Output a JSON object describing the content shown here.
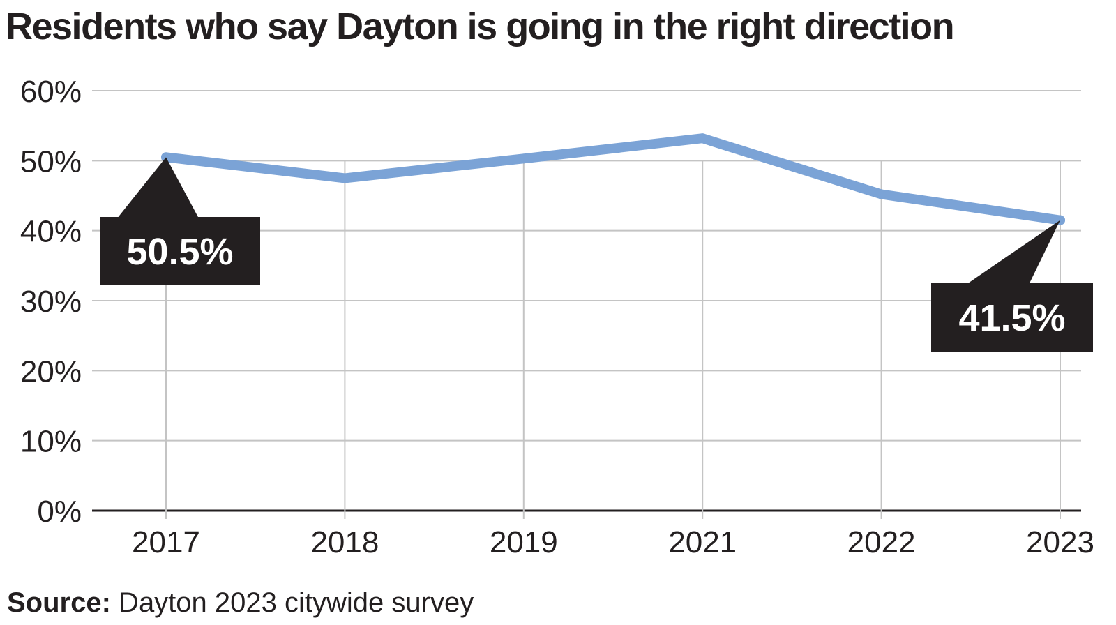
{
  "chart_data": {
    "type": "line",
    "title": "Residents who say Dayton is going in the right direction",
    "xlabel": "",
    "ylabel": "",
    "categories": [
      "2017",
      "2018",
      "2019",
      "2021",
      "2022",
      "2023"
    ],
    "series": [
      {
        "values": [
          50.5,
          47.5,
          50.3,
          53.2,
          45.2,
          41.5
        ],
        "color": "#7ba3d6"
      }
    ],
    "ylim": [
      0,
      60
    ],
    "yticks": [
      0,
      10,
      20,
      30,
      40,
      50,
      60
    ],
    "ytick_labels": [
      "0%",
      "10%",
      "20%",
      "30%",
      "40%",
      "50%",
      "60%"
    ],
    "grid": true,
    "annotations": [
      {
        "label": "50.5%",
        "index": 0
      },
      {
        "label": "41.5%",
        "index": 5
      }
    ],
    "source_label": "Source:",
    "source_text": " Dayton 2023 citywide survey"
  }
}
